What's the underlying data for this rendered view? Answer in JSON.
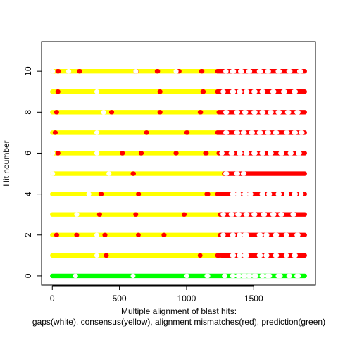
{
  "chart_data": {
    "type": "scatter",
    "title": "",
    "xlabel_line1": "Multiple alignment of blast hits:",
    "xlabel_line2": "gaps(white), consensus(yellow), alignment mismatches(red), prediction(green)",
    "ylabel": "Hit noumber",
    "xlim": [
      -80,
      1960
    ],
    "ylim": [
      -0.45,
      11.45
    ],
    "x_ticks": [
      0,
      500,
      1000,
      1500
    ],
    "y_ticks": [
      0,
      2,
      4,
      6,
      8,
      10
    ],
    "x_range_plotted": [
      0,
      1880
    ],
    "grid": false,
    "colors": {
      "gap": "#ffffff",
      "consensus": "#ffff00",
      "mismatch": "#ff0000",
      "prediction": "#00ff00",
      "axis": "#000000",
      "background": "#ffffff"
    },
    "series": [
      {
        "hit": 0,
        "base": "prediction",
        "gaps": [
          [
            170,
            175
          ],
          [
            600,
            603
          ],
          [
            1000,
            1004
          ],
          [
            1150,
            1160
          ],
          [
            1280,
            1288
          ],
          [
            1340,
            1350
          ],
          [
            1380,
            1395
          ],
          [
            1420,
            1440
          ],
          [
            1460,
            1475
          ],
          [
            1500,
            1520
          ],
          [
            1560,
            1570
          ],
          [
            1600,
            1620
          ],
          [
            1680,
            1700
          ],
          [
            1760,
            1770
          ],
          [
            1820,
            1835
          ]
        ],
        "mismatches": []
      },
      {
        "hit": 1,
        "base": "consensus",
        "consensus_end": 1260,
        "mismatches": [
          [
            400,
            404
          ],
          [
            1100,
            1102
          ],
          [
            1230,
            1240
          ],
          [
            1260,
            1880
          ]
        ],
        "gaps": [
          [
            330,
            332
          ],
          [
            1340,
            1352
          ],
          [
            1390,
            1402
          ],
          [
            1430,
            1450
          ],
          [
            1540,
            1552
          ],
          [
            1590,
            1600
          ],
          [
            1660,
            1672
          ],
          [
            1740,
            1746
          ],
          [
            1800,
            1812
          ]
        ]
      },
      {
        "hit": 2,
        "base": "consensus",
        "consensus_end": 1250,
        "mismatches": [
          [
            30,
            34
          ],
          [
            180,
            183
          ],
          [
            390,
            394
          ],
          [
            640,
            642
          ],
          [
            830,
            834
          ],
          [
            1250,
            1880
          ]
        ],
        "gaps": [
          [
            330,
            332
          ],
          [
            1270,
            1275
          ],
          [
            1340,
            1350
          ],
          [
            1390,
            1398
          ],
          [
            1430,
            1450
          ],
          [
            1540,
            1552
          ],
          [
            1590,
            1600
          ],
          [
            1660,
            1672
          ],
          [
            1740,
            1746
          ],
          [
            1820,
            1832
          ]
        ]
      },
      {
        "hit": 3,
        "base": "consensus",
        "consensus_end": 1250,
        "mismatches": [
          [
            350,
            354
          ],
          [
            620,
            623
          ],
          [
            980,
            984
          ],
          [
            1250,
            1880
          ]
        ],
        "gaps": [
          [
            180,
            184
          ],
          [
            1270,
            1276
          ],
          [
            1330,
            1342
          ],
          [
            1380,
            1392
          ],
          [
            1440,
            1452
          ],
          [
            1500,
            1510
          ],
          [
            1570,
            1582
          ],
          [
            1640,
            1652
          ],
          [
            1700,
            1710
          ],
          [
            1790,
            1800
          ]
        ]
      },
      {
        "hit": 4,
        "base": "consensus",
        "consensus_end": 1230,
        "mismatches": [
          [
            360,
            366
          ],
          [
            640,
            644
          ],
          [
            1150,
            1160
          ],
          [
            1230,
            1880
          ]
        ],
        "gaps": [
          [
            270,
            274
          ],
          [
            1340,
            1352
          ],
          [
            1380,
            1392
          ],
          [
            1430,
            1442
          ],
          [
            1470,
            1480
          ],
          [
            1560,
            1572
          ],
          [
            1610,
            1620
          ],
          [
            1680,
            1692
          ],
          [
            1740,
            1750
          ],
          [
            1800,
            1812
          ],
          [
            1850,
            1856
          ]
        ]
      },
      {
        "hit": 5,
        "base": "consensus",
        "consensus_end": 1280,
        "mismatches": [
          [
            600,
            606
          ],
          [
            1280,
            1880
          ]
        ],
        "gaps": [
          [
            0,
            4
          ],
          [
            420,
            424
          ],
          [
            1290,
            1300
          ],
          [
            1370,
            1382
          ],
          [
            1420,
            1430
          ]
        ]
      },
      {
        "hit": 6,
        "base": "consensus",
        "consensus_end": 1240,
        "mismatches": [
          [
            40,
            44
          ],
          [
            520,
            524
          ],
          [
            660,
            664
          ],
          [
            920,
            924
          ],
          [
            1140,
            1148
          ],
          [
            1240,
            1880
          ]
        ],
        "gaps": [
          [
            0,
            4
          ],
          [
            330,
            334
          ],
          [
            1260,
            1266
          ],
          [
            1330,
            1342
          ],
          [
            1390,
            1402
          ],
          [
            1440,
            1452
          ],
          [
            1500,
            1512
          ],
          [
            1560,
            1570
          ],
          [
            1620,
            1632
          ],
          [
            1700,
            1712
          ],
          [
            1770,
            1780
          ],
          [
            1830,
            1842
          ]
        ]
      },
      {
        "hit": 7,
        "base": "consensus",
        "consensus_end": 1230,
        "mismatches": [
          [
            20,
            24
          ],
          [
            700,
            704
          ],
          [
            1000,
            1006
          ],
          [
            1230,
            1880
          ]
        ],
        "gaps": [
          [
            330,
            334
          ],
          [
            1290,
            1300
          ],
          [
            1370,
            1382
          ],
          [
            1420,
            1432
          ],
          [
            1480,
            1492
          ],
          [
            1540,
            1552
          ],
          [
            1600,
            1612
          ],
          [
            1660,
            1672
          ],
          [
            1740,
            1752
          ],
          [
            1800,
            1812
          ],
          [
            1850,
            1862
          ]
        ]
      },
      {
        "hit": 8,
        "base": "consensus",
        "consensus_end": 1240,
        "mismatches": [
          [
            30,
            34
          ],
          [
            440,
            444
          ],
          [
            800,
            804
          ],
          [
            1100,
            1106
          ],
          [
            1240,
            1880
          ]
        ],
        "gaps": [
          [
            380,
            384
          ],
          [
            1290,
            1300
          ],
          [
            1370,
            1382
          ],
          [
            1430,
            1442
          ],
          [
            1500,
            1512
          ],
          [
            1560,
            1572
          ],
          [
            1620,
            1632
          ],
          [
            1680,
            1692
          ],
          [
            1750,
            1762
          ],
          [
            1820,
            1832
          ]
        ]
      },
      {
        "hit": 9,
        "base": "consensus",
        "consensus_end": 1230,
        "mismatches": [
          [
            40,
            44
          ],
          [
            800,
            804
          ],
          [
            1120,
            1126
          ],
          [
            1230,
            1880
          ]
        ],
        "gaps": [
          [
            330,
            334
          ],
          [
            1270,
            1276
          ],
          [
            1340,
            1352
          ],
          [
            1390,
            1402
          ],
          [
            1440,
            1452
          ],
          [
            1500,
            1512
          ],
          [
            1560,
            1572
          ],
          [
            1640,
            1652
          ],
          [
            1720,
            1732
          ],
          [
            1800,
            1812
          ]
        ]
      },
      {
        "hit": 10,
        "base": "consensus",
        "consensus_end": 1230,
        "mismatches": [
          [
            40,
            46
          ],
          [
            200,
            206
          ],
          [
            620,
            626
          ],
          [
            780,
            786
          ],
          [
            940,
            946
          ],
          [
            1110,
            1116
          ],
          [
            1230,
            1880
          ]
        ],
        "gaps": [
          [
            0,
            4
          ],
          [
            120,
            124
          ],
          [
            620,
            624
          ],
          [
            920,
            924
          ],
          [
            1290,
            1296
          ],
          [
            1340,
            1352
          ],
          [
            1400,
            1412
          ],
          [
            1460,
            1472
          ],
          [
            1540,
            1552
          ],
          [
            1600,
            1612
          ],
          [
            1680,
            1692
          ],
          [
            1760,
            1772
          ],
          [
            1840,
            1852
          ]
        ]
      }
    ]
  }
}
